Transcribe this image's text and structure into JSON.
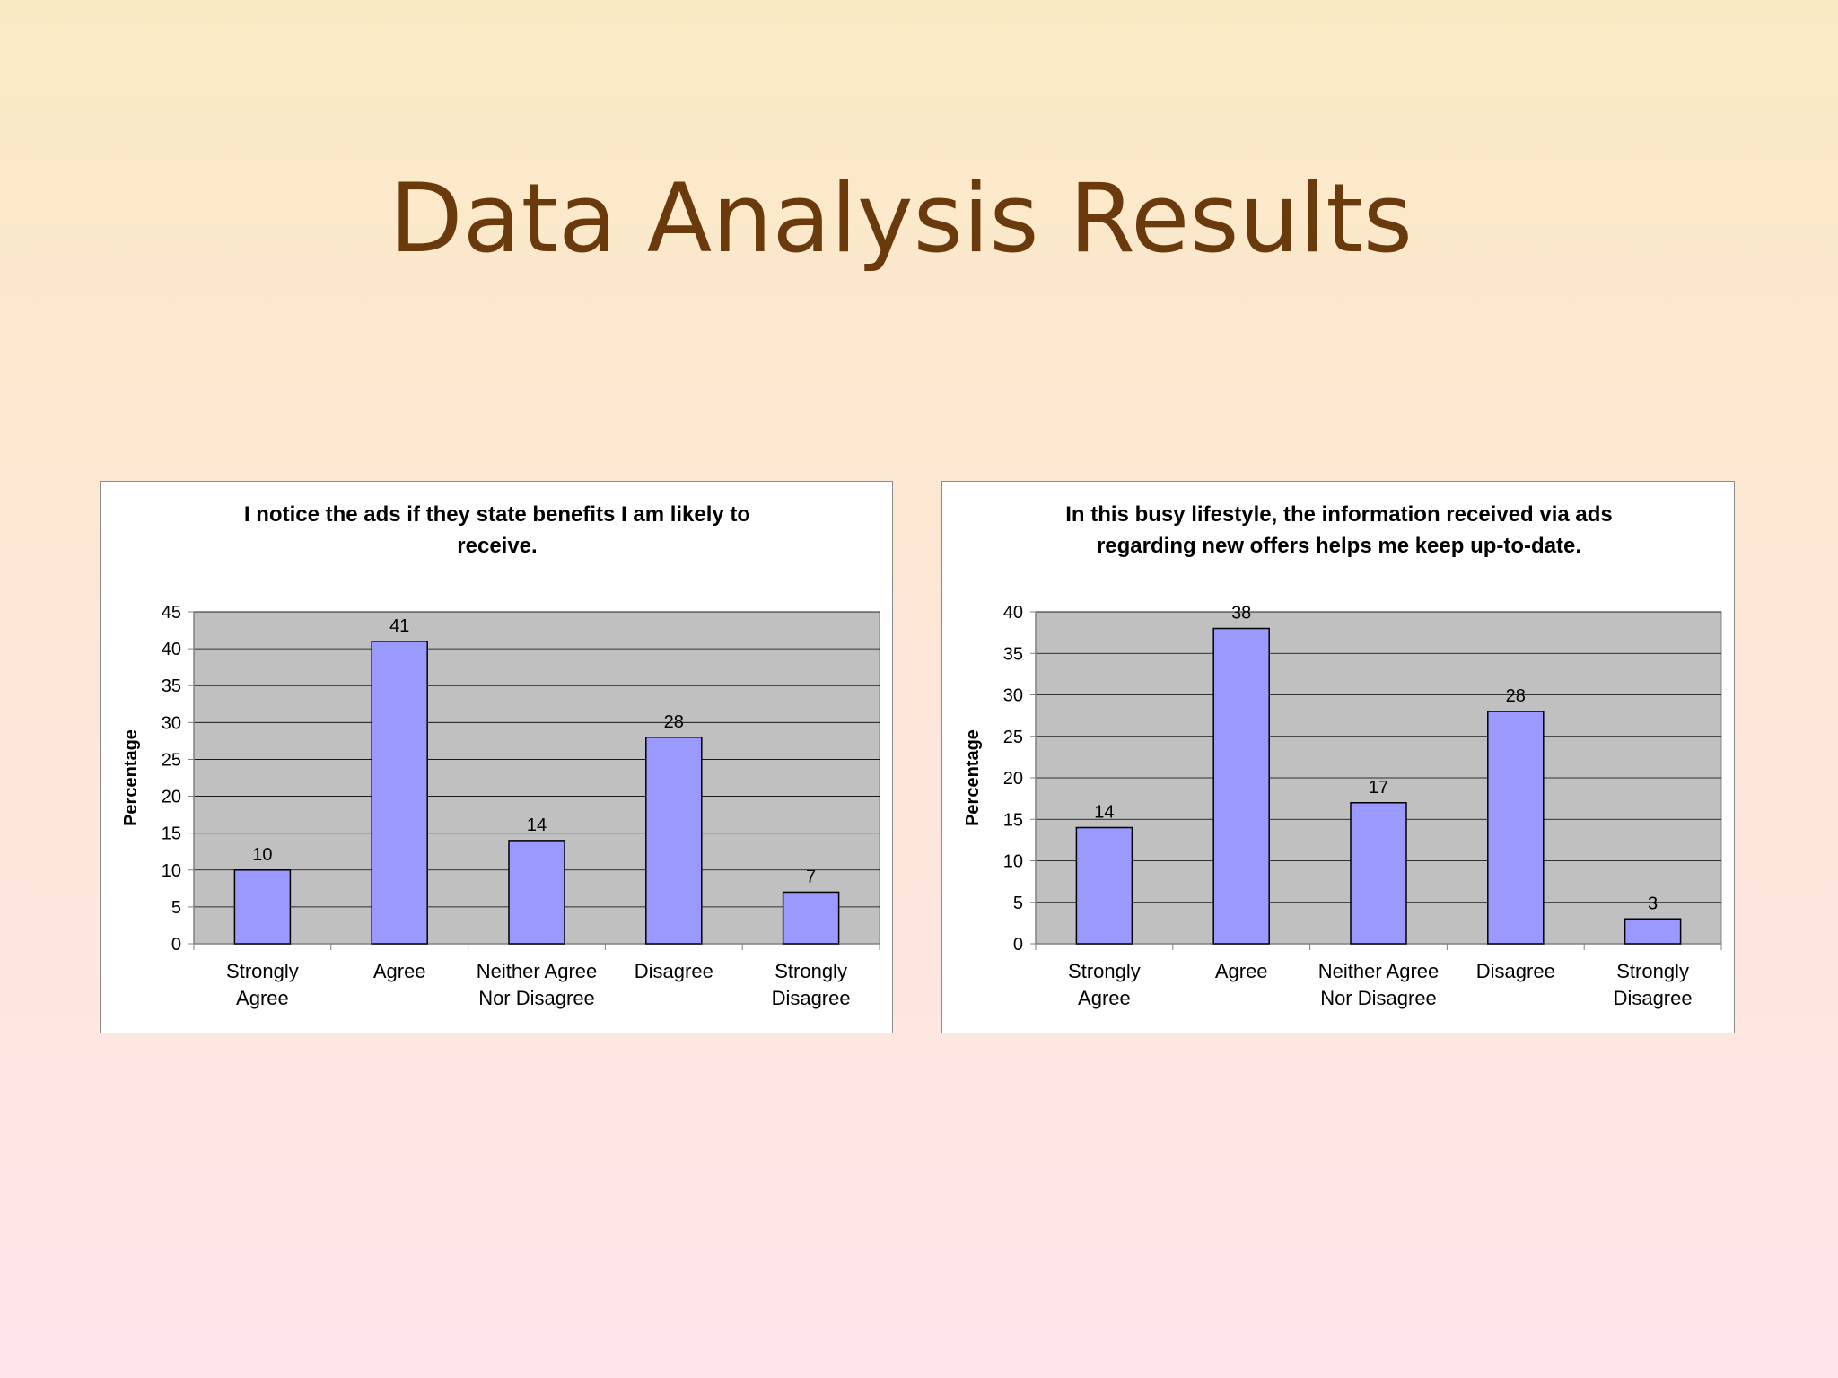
{
  "slide": {
    "title": "Data Analysis Results"
  },
  "colors": {
    "bar_fill": "#9999ff",
    "plot_background": "#c0c0c0",
    "title_color": "#6b3a0c"
  },
  "chart_data": [
    {
      "type": "bar",
      "title_lines": [
        "I notice the ads if they state benefits I am likely to",
        "receive."
      ],
      "ylabel": "Percentage",
      "xlabel": "",
      "categories": [
        [
          "Strongly",
          "Agree"
        ],
        [
          "Agree"
        ],
        [
          "Neither Agree",
          "Nor Disagree"
        ],
        [
          "Disagree"
        ],
        [
          "Strongly",
          "Disagree"
        ]
      ],
      "values": [
        10,
        41,
        14,
        28,
        7
      ],
      "ylim": [
        0,
        45
      ],
      "yticks": [
        0,
        5,
        10,
        15,
        20,
        25,
        30,
        35,
        40,
        45
      ],
      "grid": true,
      "data_labels": true
    },
    {
      "type": "bar",
      "title_lines": [
        "In this busy lifestyle, the information received via ads",
        "regarding new offers helps me keep up-to-date."
      ],
      "ylabel": "Percentage",
      "xlabel": "",
      "categories": [
        [
          "Strongly",
          "Agree"
        ],
        [
          "Agree"
        ],
        [
          "Neither Agree",
          "Nor Disagree"
        ],
        [
          "Disagree"
        ],
        [
          "Strongly",
          "Disagree"
        ]
      ],
      "values": [
        14,
        38,
        17,
        28,
        3
      ],
      "ylim": [
        0,
        40
      ],
      "yticks": [
        0,
        5,
        10,
        15,
        20,
        25,
        30,
        35,
        40
      ],
      "grid": true,
      "data_labels": true
    }
  ]
}
